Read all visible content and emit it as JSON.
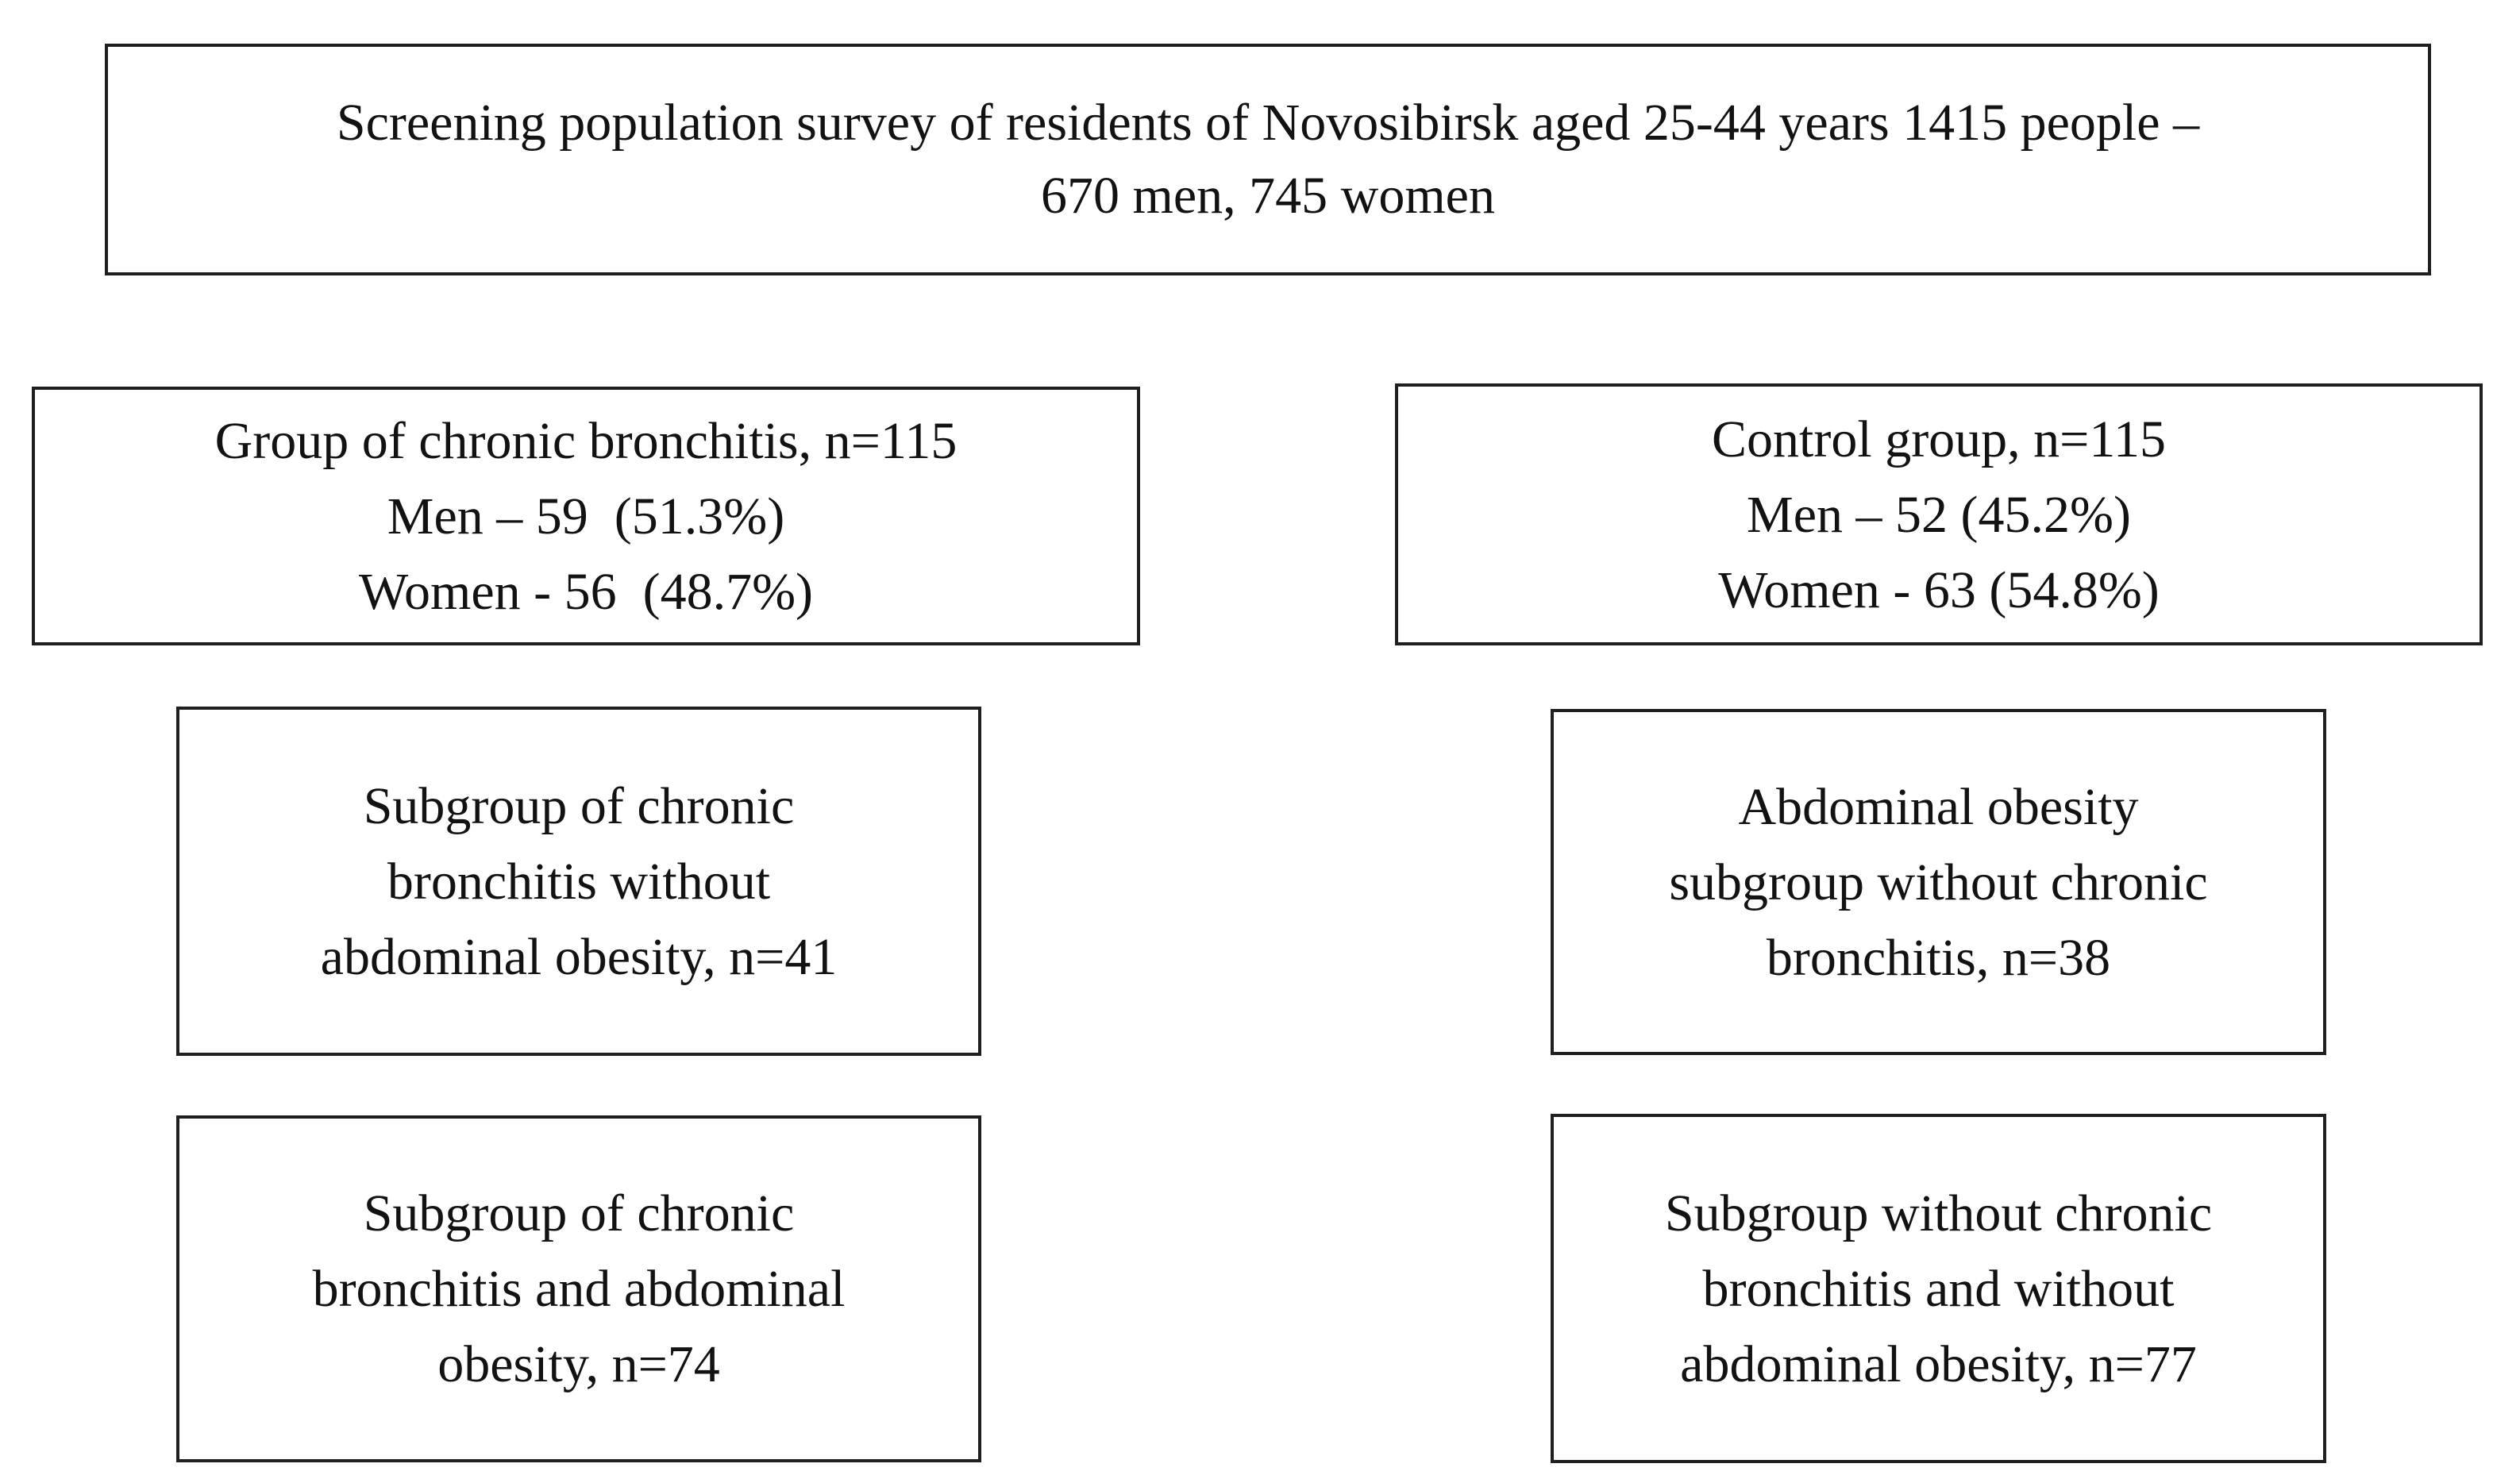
{
  "diagram": {
    "colors": {
      "background": "#ffffff",
      "border": "#1f1f1f",
      "text": "#121212"
    },
    "top_box": {
      "lines": [
        "Screening population survey of residents of Novosibirsk aged 25-44 years 1415 people –",
        "670 men, 745 women"
      ]
    },
    "bronchitis_group_box": {
      "lines": [
        "Group of chronic bronchitis, n=115",
        "Men – 59  (51.3%)",
        "Women - 56  (48.7%)"
      ]
    },
    "control_group_box": {
      "lines": [
        "Control group, n=115",
        "Men – 52 (45.2%)",
        "Women - 63 (54.8%)"
      ]
    },
    "bronchitis_without_obesity_box": {
      "lines": [
        "Subgroup of chronic",
        "bronchitis without",
        "abdominal obesity, n=41"
      ]
    },
    "obesity_without_bronchitis_box": {
      "lines": [
        "Abdominal obesity",
        "subgroup without chronic",
        "bronchitis, n=38"
      ]
    },
    "bronchitis_and_obesity_box": {
      "lines": [
        "Subgroup of chronic",
        "bronchitis and abdominal",
        "obesity, n=74"
      ]
    },
    "without_bronchitis_without_obesity_box": {
      "lines": [
        "Subgroup without chronic",
        "bronchitis and without",
        "abdominal obesity, n=77"
      ]
    }
  }
}
